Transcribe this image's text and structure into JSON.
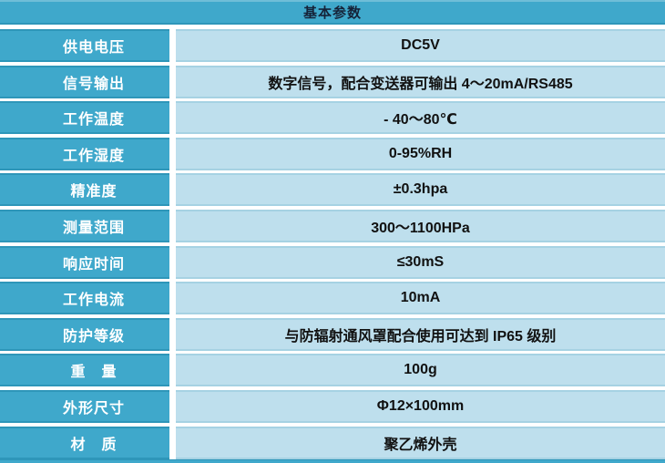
{
  "header": {
    "title": "基本参数"
  },
  "rows": [
    {
      "label": "供电电压",
      "value": "DC5V"
    },
    {
      "label": "信号输出",
      "value": "数字信号，配合变送器可输出 4～20mA/RS485"
    },
    {
      "label": "工作温度",
      "value": "- 40～80℃"
    },
    {
      "label": "工作湿度",
      "value": "0-95%RH"
    },
    {
      "label": "精准度",
      "value": "±0.3hpa"
    },
    {
      "label": "测量范围",
      "value": "300～1100HPa"
    },
    {
      "label": "响应时间",
      "value": "≤30mS"
    },
    {
      "label": "工作电流",
      "value": "10mA"
    },
    {
      "label": "防护等级",
      "value": "与防辐射通风罩配合使用可达到 IP65 级别"
    },
    {
      "label": "重　量",
      "value": "100g"
    },
    {
      "label": "外形尺寸",
      "value": "Φ12×100mm"
    },
    {
      "label": "材　质",
      "value": "聚乙烯外壳"
    }
  ],
  "colors": {
    "blue": "#3fa8cb",
    "blue-edge": "#2e96b9",
    "light": "#bedfed",
    "light-edge": "#a6d2e3",
    "header-text": "#152238",
    "value-text": "#111111",
    "label-text": "#ffffff"
  }
}
